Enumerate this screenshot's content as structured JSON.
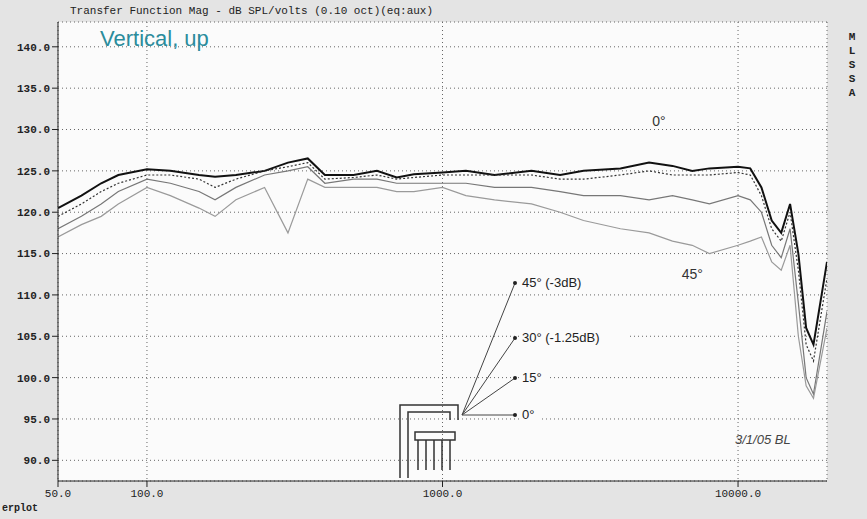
{
  "chart_data": {
    "type": "line",
    "title": "Transfer Function Mag - dB SPL/volts (0.10 oct)(eq:aux)",
    "subtitle": "Vertical, up",
    "side_label": "MLSSA",
    "corner_label": "erplot",
    "signature": "3/1/05 BL",
    "log": "x",
    "grid": true,
    "xlim": [
      50,
      20000
    ],
    "xticks": [
      {
        "value": 50,
        "label": "50.0"
      },
      {
        "value": 100,
        "label": "100.0"
      },
      {
        "value": 1000,
        "label": "1000.0"
      },
      {
        "value": 10000,
        "label": "10000.0"
      }
    ],
    "ylim": [
      87.5,
      143
    ],
    "yticks": [
      {
        "value": 90,
        "label": "90.0"
      },
      {
        "value": 95,
        "label": "95.0"
      },
      {
        "value": 100,
        "label": "100.0"
      },
      {
        "value": 105,
        "label": "105.0"
      },
      {
        "value": 110,
        "label": "110.0"
      },
      {
        "value": 115,
        "label": "115.0"
      },
      {
        "value": 120,
        "label": "120.0"
      },
      {
        "value": 125,
        "label": "125.0"
      },
      {
        "value": 130,
        "label": "130.0"
      },
      {
        "value": 135,
        "label": "135.0"
      },
      {
        "value": 140,
        "label": "140.0"
      }
    ],
    "x": [
      50,
      60,
      70,
      80,
      100,
      120,
      150,
      170,
      200,
      250,
      300,
      350,
      400,
      500,
      600,
      700,
      800,
      1000,
      1200,
      1500,
      2000,
      2500,
      3000,
      4000,
      5000,
      6000,
      7000,
      8000,
      10000,
      11000,
      12000,
      13000,
      14000,
      15000,
      16000,
      17000,
      18000,
      20000
    ],
    "series": [
      {
        "name": "0°",
        "color": "#111111",
        "line_style": "solid",
        "values": [
          120.5,
          122,
          123.5,
          124.5,
          125.2,
          125,
          124.5,
          124.3,
          124.5,
          125,
          126,
          126.5,
          124.5,
          124.5,
          125,
          124.2,
          124.6,
          124.8,
          125,
          124.5,
          125,
          124.5,
          125,
          125.3,
          126,
          125.6,
          125,
          125.3,
          125.5,
          125.3,
          123,
          119,
          117.5,
          121,
          115,
          106,
          104,
          114
        ]
      },
      {
        "name": "15°",
        "color": "#333333",
        "line_style": "dotted",
        "values": [
          119.5,
          121,
          122.5,
          123.5,
          124.5,
          124.5,
          124,
          123,
          124,
          125,
          125.5,
          126,
          124,
          124.2,
          124.5,
          124,
          124.2,
          124.5,
          124.5,
          124.5,
          124.5,
          124,
          124,
          124.5,
          125,
          124.5,
          124.5,
          124.5,
          124.8,
          124.5,
          122,
          118,
          116.5,
          120,
          113,
          104,
          102,
          112
        ]
      },
      {
        "name": "30°",
        "note": "(-1.25dB)",
        "color": "#777777",
        "line_style": "solid",
        "values": [
          118,
          119.5,
          121,
          122.5,
          124,
          123.5,
          122.5,
          121.5,
          123,
          124.5,
          125,
          125.5,
          123.5,
          124,
          124,
          123.5,
          123.5,
          123.5,
          123.5,
          123,
          123,
          122.5,
          122,
          122,
          121.5,
          122,
          121.5,
          121,
          122,
          121.5,
          120,
          116,
          114.5,
          118,
          109,
          100,
          98,
          108
        ]
      },
      {
        "name": "45°",
        "note": "(-3dB)",
        "color": "#9a9a9a",
        "line_style": "solid",
        "values": [
          117,
          118.5,
          119.5,
          121,
          123,
          122,
          120.5,
          119.5,
          121.5,
          123,
          117.5,
          124,
          123,
          123,
          123,
          122.5,
          122.5,
          123,
          122,
          121.5,
          121,
          120,
          119,
          118,
          117.5,
          116.5,
          116,
          115,
          116,
          116.5,
          117,
          114,
          113,
          116,
          105,
          99,
          97.5,
          106
        ]
      }
    ],
    "curve_labels": [
      {
        "text": "0°",
        "x": 5400,
        "y": 131
      },
      {
        "text": "45°",
        "x": 7000,
        "y": 112.5
      }
    ]
  }
}
